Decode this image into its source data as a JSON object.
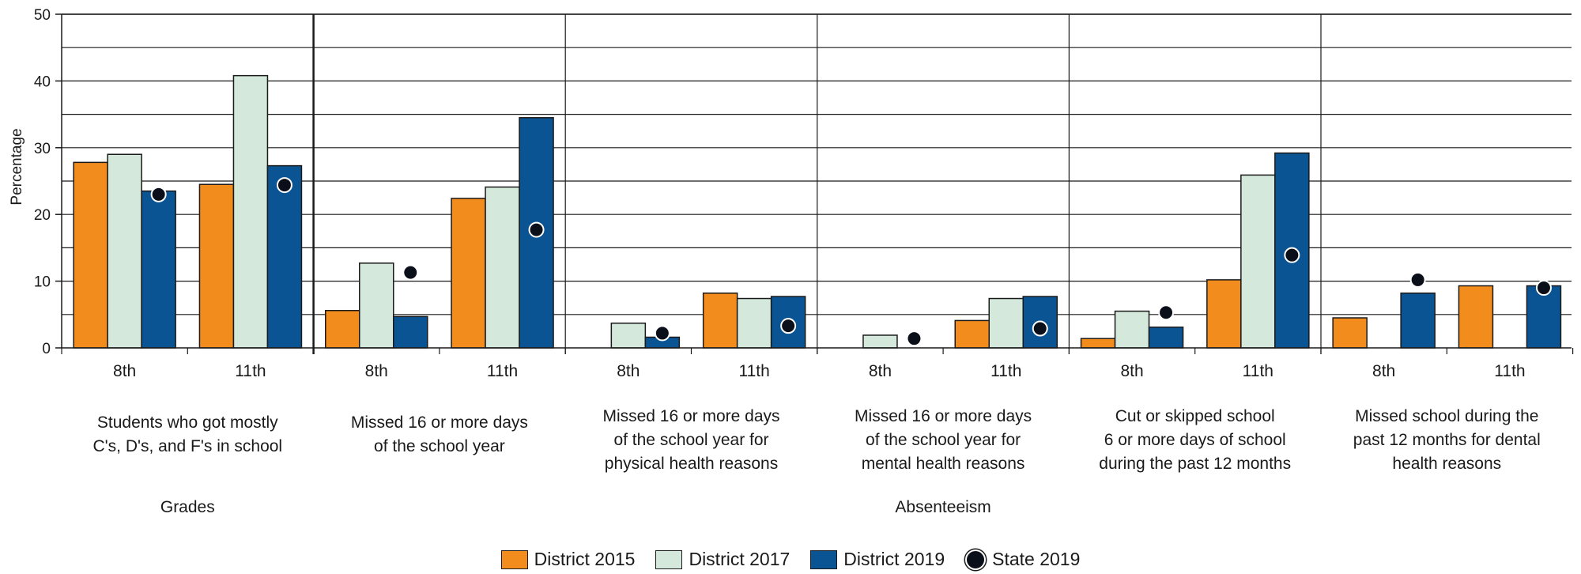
{
  "chart_data": {
    "type": "bar",
    "ylabel": "Percentage",
    "ylim": [
      0,
      50
    ],
    "yticks": [
      0,
      10,
      20,
      30,
      40,
      50
    ],
    "grid": true,
    "legend_position": "bottom-center",
    "series": [
      {
        "name": "District 2015",
        "color": "#f28c1c",
        "kind": "bar"
      },
      {
        "name": "District 2017",
        "color": "#d4e8dc",
        "kind": "bar"
      },
      {
        "name": "District 2019",
        "color": "#0a5494",
        "kind": "bar"
      },
      {
        "name": "State 2019",
        "color": "#0b0f1a",
        "kind": "point"
      }
    ],
    "groups": [
      {
        "label": [
          "Students who got mostly",
          "C's, D's, and F's in school"
        ],
        "categories": [
          {
            "grade": "8th",
            "values": [
              27.8,
              29.0,
              23.5
            ],
            "state": 23.0
          },
          {
            "grade": "11th",
            "values": [
              24.5,
              40.8,
              27.3
            ],
            "state": 24.4
          }
        ]
      },
      {
        "label": [
          "Missed 16 or more days",
          "of the school year"
        ],
        "categories": [
          {
            "grade": "8th",
            "values": [
              5.6,
              12.7,
              4.7
            ],
            "state": 11.3
          },
          {
            "grade": "11th",
            "values": [
              22.4,
              24.1,
              34.5
            ],
            "state": 17.7
          }
        ]
      },
      {
        "label": [
          "Missed 16 or more days",
          "of the school year for",
          "physical health reasons"
        ],
        "categories": [
          {
            "grade": "8th",
            "values": [
              null,
              3.7,
              1.6
            ],
            "state": 2.2
          },
          {
            "grade": "11th",
            "values": [
              8.2,
              7.4,
              7.7
            ],
            "state": 3.3
          }
        ]
      },
      {
        "label": [
          "Missed 16 or more days",
          "of the school year for",
          "mental health reasons"
        ],
        "categories": [
          {
            "grade": "8th",
            "values": [
              null,
              1.9,
              null
            ],
            "state": 1.4
          },
          {
            "grade": "11th",
            "values": [
              4.1,
              7.4,
              7.7
            ],
            "state": 2.9
          }
        ]
      },
      {
        "label": [
          "Cut or skipped school",
          "6 or more days of school",
          "during the past 12 months"
        ],
        "categories": [
          {
            "grade": "8th",
            "values": [
              1.4,
              5.5,
              3.1
            ],
            "state": 5.3
          },
          {
            "grade": "11th",
            "values": [
              10.2,
              25.9,
              29.2
            ],
            "state": 13.9
          }
        ]
      },
      {
        "label": [
          "Missed school during the",
          "past 12 months for dental",
          "health reasons"
        ],
        "categories": [
          {
            "grade": "8th",
            "values": [
              4.5,
              null,
              8.2
            ],
            "state": 10.2
          },
          {
            "grade": "11th",
            "values": [
              9.3,
              null,
              9.3
            ],
            "state": 9.0
          }
        ]
      }
    ],
    "sections": [
      {
        "label": "Grades",
        "groups": [
          0
        ]
      },
      {
        "label": "Absenteeism",
        "groups": [
          1,
          2,
          3,
          4,
          5
        ]
      }
    ]
  }
}
